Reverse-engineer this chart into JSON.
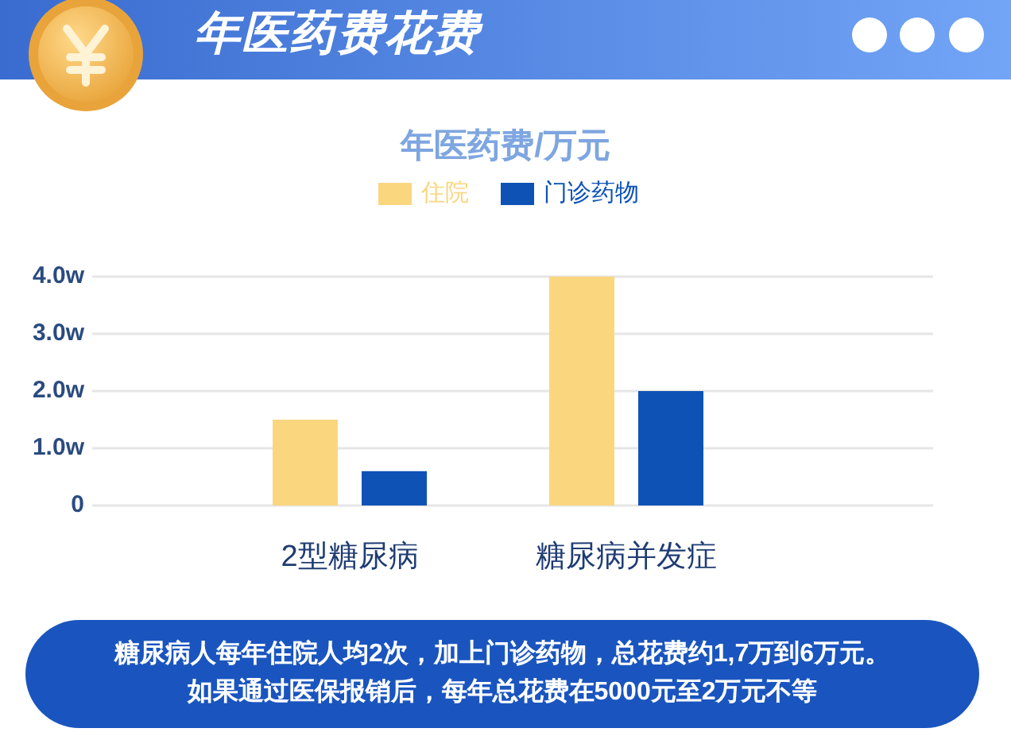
{
  "chart_data": {
    "type": "bar",
    "title": "年医药费花费",
    "subtitle": "年医药费/万元",
    "categories": [
      "2型糖尿病",
      "糖尿病并发症"
    ],
    "series": [
      {
        "name": "住院",
        "color": "#fad67f",
        "values": [
          1.5,
          4.0
        ]
      },
      {
        "name": "门诊药物",
        "color": "#0e52b6",
        "values": [
          0.6,
          2.0
        ]
      }
    ],
    "ylim": [
      0,
      4
    ],
    "yticks": [
      0,
      {
        "value": 1,
        "label": "1.0w"
      },
      {
        "value": 2,
        "label": "2.0w"
      },
      {
        "value": 3,
        "label": "3.0w"
      },
      {
        "value": 4,
        "label": "4.0w"
      }
    ],
    "grid": "y",
    "legend": "top",
    "annotations": [
      "糖尿病人每年住院人均2次，加上门诊药物，总花费约1,7万到6万元。",
      "如果通过医保报销后，每年总花费在5000元至2万元不等"
    ]
  }
}
